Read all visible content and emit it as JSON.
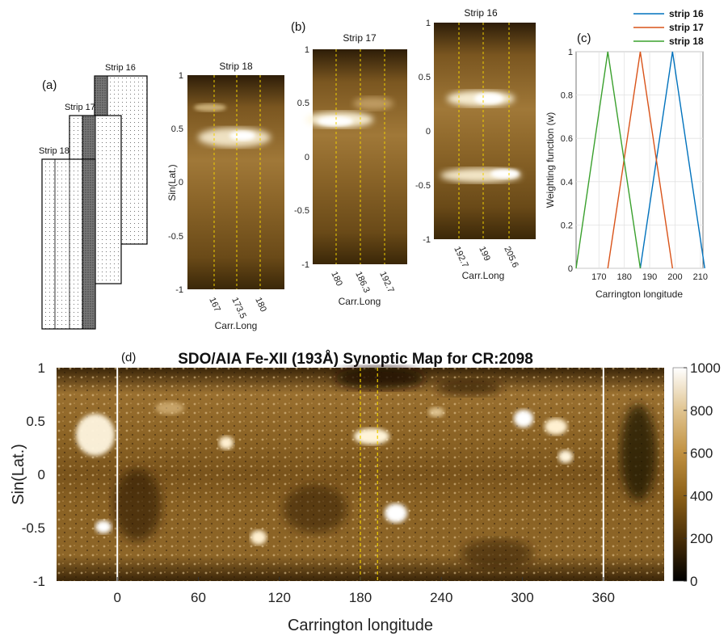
{
  "panel_a": {
    "label": "(a)",
    "strips": [
      "Strip 16",
      "Strip 17",
      "Strip 18"
    ]
  },
  "panel_b": {
    "label": "(b)",
    "strip18": {
      "title": "Strip 18",
      "ylabel": "Sin(Lat.)",
      "xlabel": "Carr.Long",
      "yticks": [
        "1",
        "0.5",
        "0",
        "-0.5",
        "-1"
      ],
      "xticks": [
        "167",
        "173.5",
        "180"
      ]
    },
    "strip17": {
      "title": "Strip 17",
      "xlabel": "Carr.Long",
      "yticks": [
        "1",
        "0.5",
        "0",
        "-0.5",
        "-1"
      ],
      "xticks": [
        "180",
        "186.3",
        "192.7"
      ]
    },
    "strip16": {
      "title": "Strip 16",
      "xlabel": "Carr.Long",
      "yticks": [
        "1",
        "0.5",
        "0",
        "-0.5",
        "-1"
      ],
      "xticks": [
        "192.7",
        "199",
        "205.6"
      ]
    }
  },
  "panel_c": {
    "label": "(c)"
  },
  "panel_d": {
    "label": "(d)"
  },
  "chart_data": [
    {
      "type": "line",
      "panel": "c",
      "xlabel": "Carrington longitude",
      "ylabel": "Weighting function (w)",
      "xlim": [
        161,
        211
      ],
      "ylim": [
        0,
        1
      ],
      "xticks": [
        170,
        180,
        190,
        200,
        210
      ],
      "yticks": [
        0,
        0.2,
        0.4,
        0.6,
        0.8,
        1
      ],
      "grid": true,
      "legend_position": "top-right",
      "series": [
        {
          "name": "strip 16",
          "color": "#0072BD",
          "x": [
            186.3,
            199,
            211.7
          ],
          "y": [
            0,
            1,
            0
          ]
        },
        {
          "name": "strip 17",
          "color": "#D95319",
          "x": [
            173.5,
            186.3,
            199
          ],
          "y": [
            0,
            1,
            0
          ]
        },
        {
          "name": "strip 18",
          "color": "#3AA02D",
          "x": [
            161,
            173.5,
            186.3
          ],
          "y": [
            0,
            1,
            0
          ]
        }
      ]
    },
    {
      "type": "heatmap",
      "panel": "d",
      "title": "SDO/AIA Fe-XII (193Å) Synoptic Map for CR:2098",
      "xlabel": "Carrington longitude",
      "ylabel": "Sin(Lat.)",
      "xlim": [
        -45,
        405
      ],
      "ylim": [
        -1,
        1
      ],
      "xticks": [
        0,
        60,
        120,
        180,
        240,
        300,
        360
      ],
      "yticks": [
        1,
        0.5,
        0,
        -0.5,
        -1
      ],
      "colorbar": {
        "min": 0,
        "max": 1000,
        "ticks": [
          0,
          200,
          400,
          600,
          800,
          1000
        ]
      },
      "vertical_markers": [
        {
          "x": 0,
          "color": "#ffffff"
        },
        {
          "x": 360,
          "color": "#ffffff"
        },
        {
          "x": 180,
          "color": "#f0d000"
        },
        {
          "x": 192.7,
          "color": "#f0d000"
        }
      ]
    }
  ]
}
